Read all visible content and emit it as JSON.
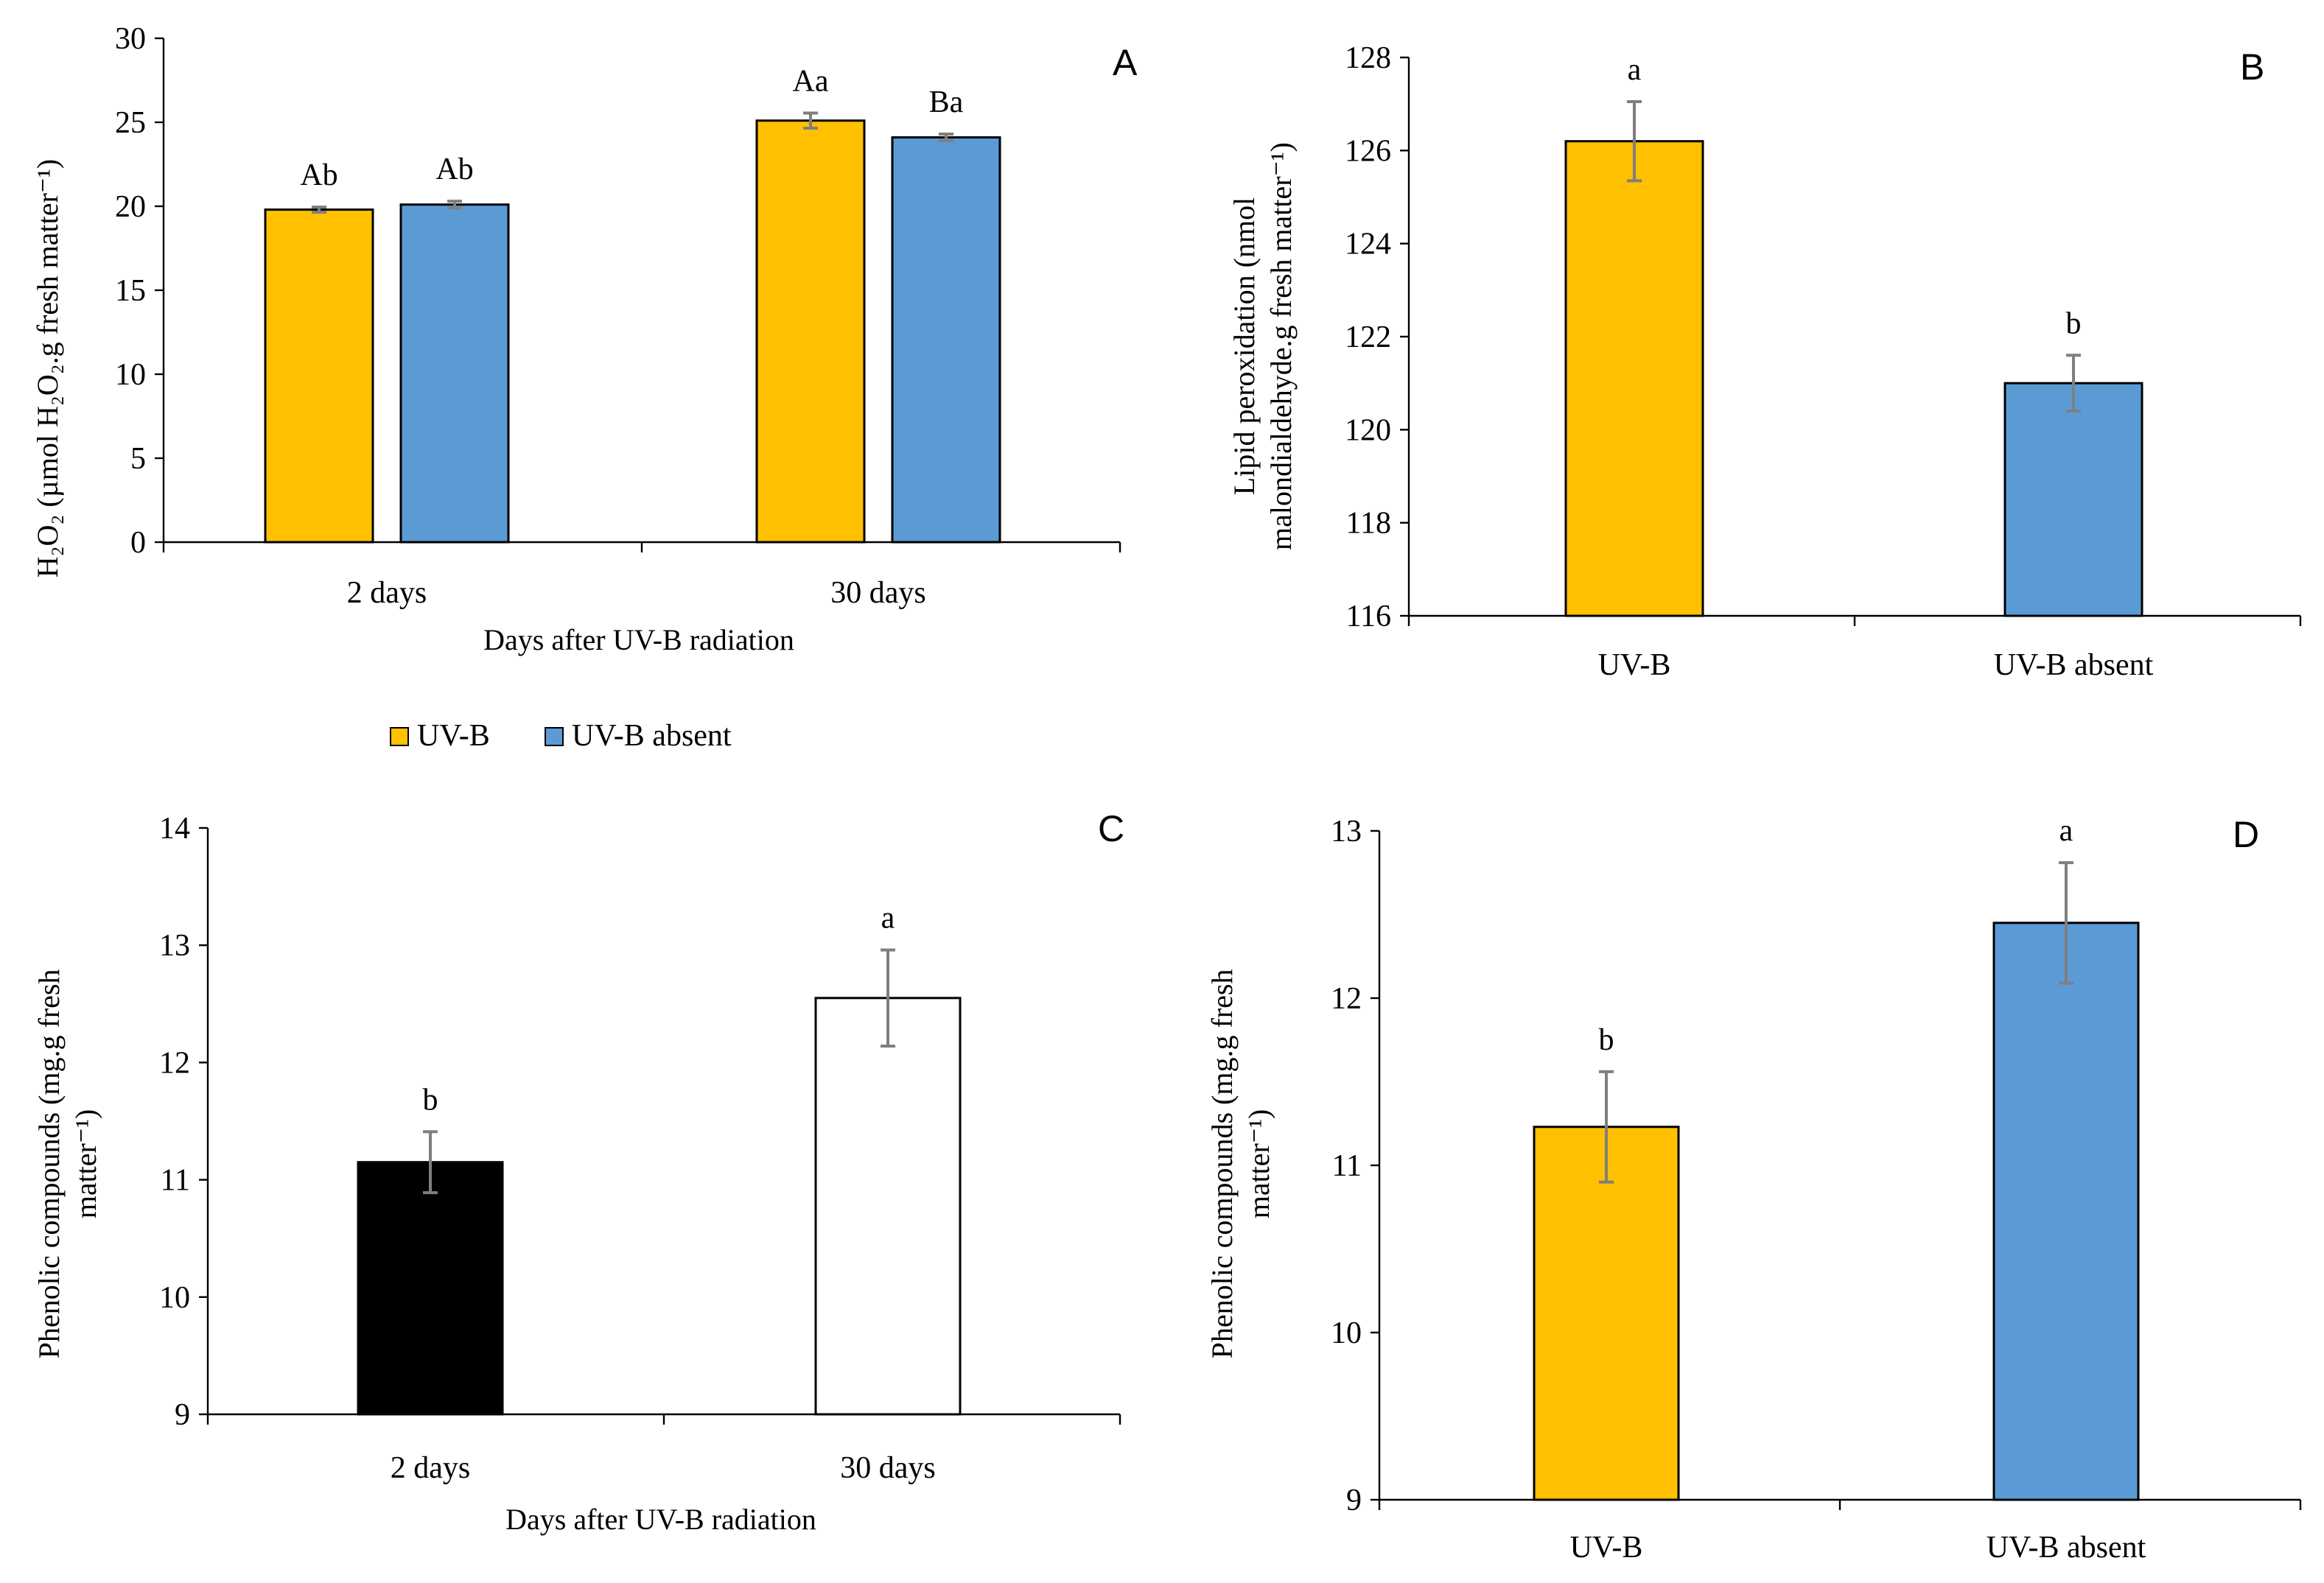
{
  "colors": {
    "uvb": "#ffc000",
    "uvb_absent": "#5b9bd5",
    "black": "#000000",
    "white": "#ffffff"
  },
  "legend": {
    "items": [
      {
        "label": "UV-B",
        "color": "#ffc000"
      },
      {
        "label": "UV-B absent",
        "color": "#5b9bd5"
      }
    ]
  },
  "chart_data": [
    {
      "panel": "A",
      "type": "bar",
      "categories": [
        "2 days",
        "30 days"
      ],
      "series": [
        {
          "name": "UV-B",
          "color": "#ffc000",
          "values": [
            19.8,
            25.1
          ],
          "errors": [
            0.15,
            0.45
          ],
          "labels": [
            "Ab",
            "Aa"
          ]
        },
        {
          "name": "UV-B absent",
          "color": "#5b9bd5",
          "values": [
            20.1,
            24.1
          ],
          "errors": [
            0.2,
            0.2
          ],
          "labels": [
            "Ab",
            "Ba"
          ]
        }
      ],
      "yticks": [
        "0",
        "5",
        "10",
        "15",
        "20",
        "25",
        "30"
      ],
      "ylim": [
        0,
        30
      ],
      "xlabel": "Days after UV-B radiation",
      "ylabel": "H₂O₂ (µmol H₂O₂.g fresh matter⁻¹)"
    },
    {
      "panel": "B",
      "type": "bar",
      "categories": [
        "UV-B",
        "UV-B absent"
      ],
      "values": [
        126.2,
        121.0
      ],
      "errors": [
        0.85,
        0.6
      ],
      "colors": [
        "#ffc000",
        "#5b9bd5"
      ],
      "labels": [
        "a",
        "b"
      ],
      "yticks": [
        "116",
        "118",
        "120",
        "122",
        "124",
        "126",
        "128"
      ],
      "ylim": [
        116,
        128
      ],
      "xlabel": "",
      "ylabel_lines": [
        "Lipid peroxidation (nmol",
        "malondialdehyde.g fresh matter⁻¹)"
      ]
    },
    {
      "panel": "C",
      "type": "bar",
      "categories": [
        "2 days",
        "30 days"
      ],
      "values": [
        11.15,
        12.55
      ],
      "errors": [
        0.26,
        0.41
      ],
      "colors": [
        "#000000",
        "#ffffff"
      ],
      "labels": [
        "b",
        "a"
      ],
      "yticks": [
        "9",
        "10",
        "11",
        "12",
        "13",
        "14"
      ],
      "ylim": [
        9,
        14
      ],
      "xlabel": "Days after UV-B radiation",
      "ylabel_lines": [
        "Phenolic compounds (mg.g fresh",
        "matter⁻¹)"
      ]
    },
    {
      "panel": "D",
      "type": "bar",
      "categories": [
        "UV-B",
        "UV-B absent"
      ],
      "values": [
        11.23,
        12.45
      ],
      "errors": [
        0.33,
        0.36
      ],
      "colors": [
        "#ffc000",
        "#5b9bd5"
      ],
      "labels": [
        "b",
        "a"
      ],
      "yticks": [
        "9",
        "10",
        "11",
        "12",
        "13"
      ],
      "ylim": [
        9,
        13
      ],
      "xlabel": "",
      "ylabel_lines": [
        "Phenolic compounds (mg.g fresh",
        "matter⁻¹)"
      ]
    }
  ]
}
